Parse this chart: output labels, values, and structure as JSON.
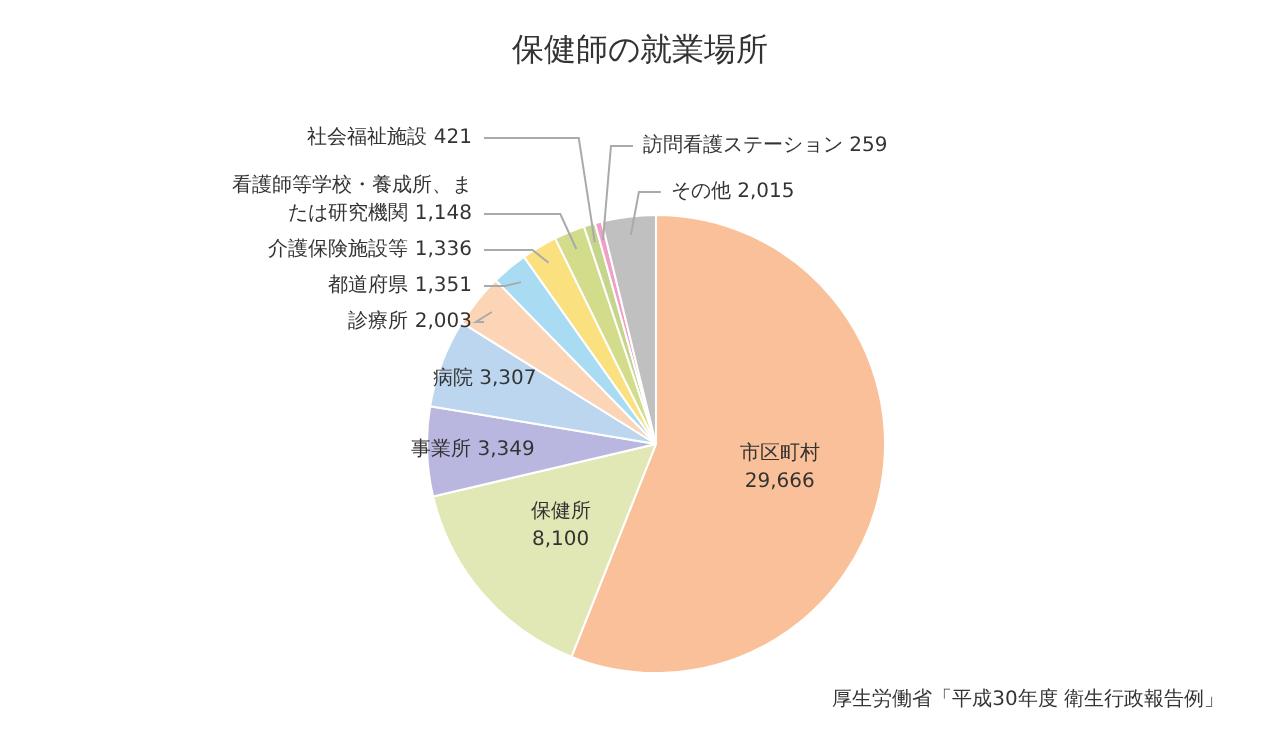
{
  "chart_data": {
    "type": "pie",
    "title": "保健師の就業場所",
    "categories": [
      "市区町村",
      "保健所",
      "事業所",
      "病院",
      "診療所",
      "都道府県",
      "介護保険施設等",
      "看護師等学校・養成所、または研究機関",
      "社会福祉施設",
      "訪問看護ステーション",
      "その他"
    ],
    "values": [
      29666,
      8100,
      3349,
      3307,
      2003,
      1351,
      1336,
      1148,
      421,
      259,
      2015
    ],
    "value_labels": [
      "29,666",
      "8,100",
      "3,349",
      "3,307",
      "2,003",
      "1,351",
      "1,336",
      "1,148",
      "421",
      "259",
      "2,015"
    ],
    "colors": [
      "#f9c09a",
      "#e2e8b5",
      "#b9b7e0",
      "#bcd6ef",
      "#fbd5b5",
      "#a9dcf2",
      "#fbe07f",
      "#d3dc8a",
      "#c6d58c",
      "#f0a0c8",
      "#c0c0c0"
    ],
    "annotations": [
      "厚生労働省「平成30年度 衛生行政報告例」"
    ]
  }
}
